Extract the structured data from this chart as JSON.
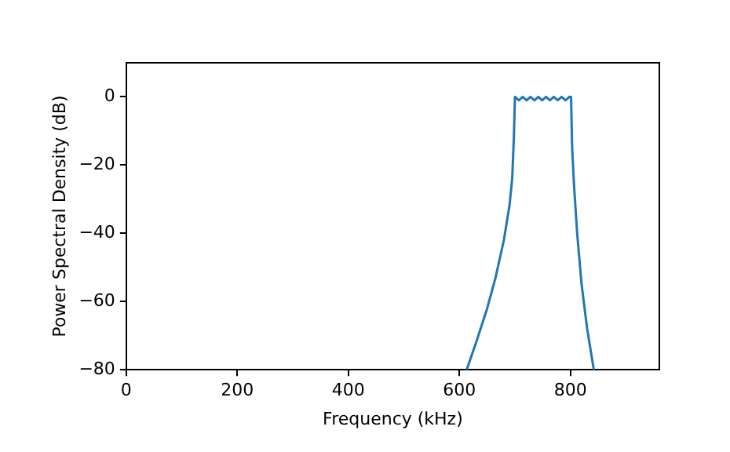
{
  "chart_data": {
    "type": "line",
    "xlabel": "Frequency (kHz)",
    "ylabel": "Power Spectral Density (dB)",
    "xlim": [
      0,
      960
    ],
    "xticks": [
      0,
      200,
      400,
      600,
      800
    ],
    "ylim": [
      -80,
      10
    ],
    "yticks": [
      0,
      -20,
      -40,
      -60,
      -80
    ],
    "grid": false,
    "legend": false,
    "marker": "none",
    "line_style": "solid",
    "series": [
      {
        "color": "#1f77b4",
        "x": [
          613,
          630,
          650,
          665,
          680,
          690,
          695,
          698,
          700,
          707,
          714,
          721,
          728,
          735,
          742,
          749,
          756,
          763,
          770,
          777,
          784,
          791,
          798,
          801,
          803,
          806,
          812,
          820,
          830,
          842
        ],
        "values": [
          -80,
          -72,
          -62,
          -53,
          -42,
          -32,
          -24,
          -12,
          0,
          -1,
          0,
          -1,
          0,
          -1,
          0,
          -1,
          0,
          -1,
          0,
          -1,
          0,
          -1,
          0,
          0,
          -15,
          -25,
          -40,
          -55,
          -68,
          -80
        ]
      }
    ]
  }
}
